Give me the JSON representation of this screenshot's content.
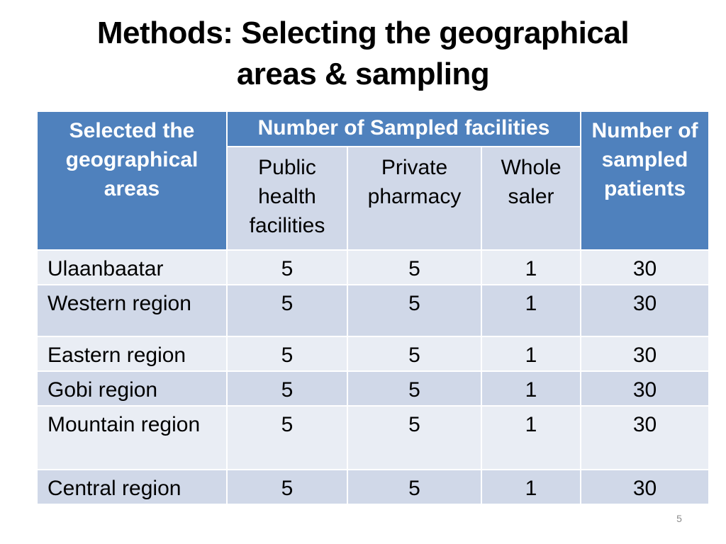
{
  "slide": {
    "title_line1": "Methods: Selecting the geographical",
    "title_line2": "areas & sampling",
    "page_number": "5"
  },
  "table": {
    "header": {
      "areas": "Selected the geographical areas",
      "facilities_group": "Number of Sampled facilities",
      "patients": "Number of sampled patients",
      "sub_public": "Public health facilities",
      "sub_private": "Private pharmacy",
      "sub_whole": "Whole saler"
    },
    "rows": [
      {
        "area": "Ulaanbaatar",
        "public": "5",
        "private": "5",
        "whole": "1",
        "patients": "30"
      },
      {
        "area": "Western region",
        "public": "5",
        "private": "5",
        "whole": "1",
        "patients": "30"
      },
      {
        "area": "Eastern region",
        "public": "5",
        "private": "5",
        "whole": "1",
        "patients": "30"
      },
      {
        "area": "Gobi region",
        "public": "5",
        "private": "5",
        "whole": "1",
        "patients": "30"
      },
      {
        "area": "Mountain region",
        "public": "5",
        "private": "5",
        "whole": "1",
        "patients": "30"
      },
      {
        "area": "Central region",
        "public": "5",
        "private": "5",
        "whole": "1",
        "patients": "30"
      }
    ]
  },
  "colors": {
    "header_blue": "#4f81bd",
    "row_dark": "#d0d8e8",
    "row_light": "#e9edf4"
  }
}
